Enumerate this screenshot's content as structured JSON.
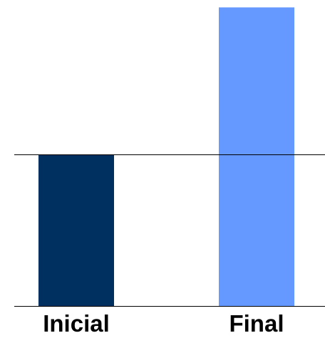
{
  "chart_data": {
    "type": "bar",
    "categories": [
      "Inicial",
      "Final"
    ],
    "values": [
      1,
      1.97
    ],
    "bar_colors": [
      "#003060",
      "#6699ff"
    ],
    "reference_line": 1,
    "grid": false,
    "legend": "none",
    "axis_color": "#000000"
  }
}
